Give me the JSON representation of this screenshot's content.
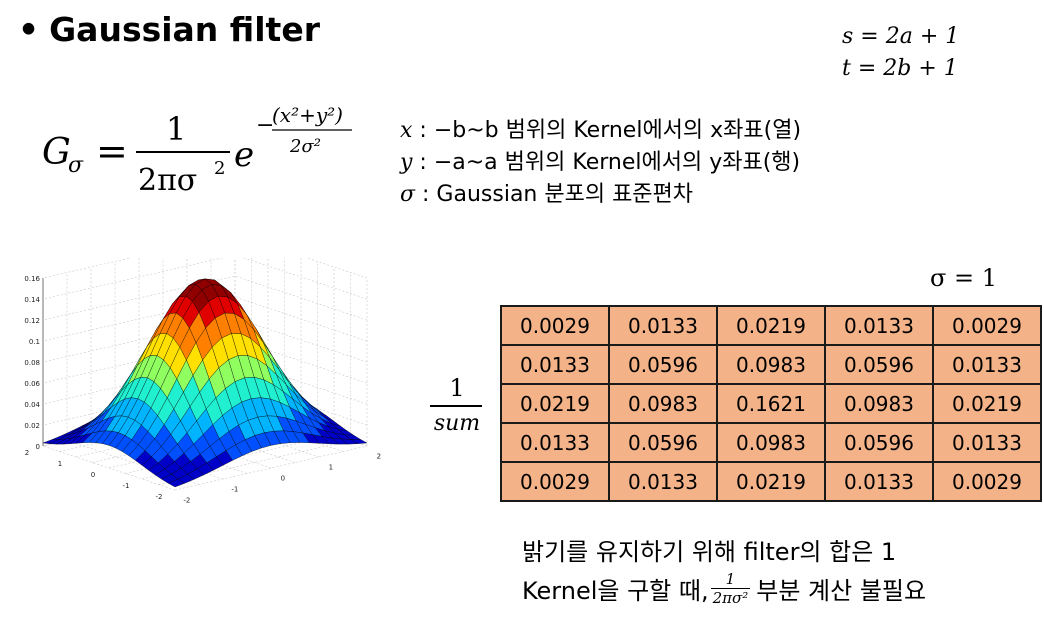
{
  "title": {
    "bullet": "•",
    "text": "Gaussian filter"
  },
  "size_equations": [
    "s = 2a + 1",
    "t = 2b + 1"
  ],
  "formula": {
    "lhs": "G",
    "lhs_sub": "σ",
    "equals": "=",
    "numerator": "1",
    "denominator": "2πσ",
    "denominator_exp": "2",
    "base": "e",
    "exp_minus": "−",
    "exp_numerator": "(x²+y²)",
    "exp_denominator": "2σ²"
  },
  "variables": [
    {
      "symbol": "x",
      "text": " : −b~b 범위의 Kernel에서의 x좌표(열)"
    },
    {
      "symbol": "y",
      "text": " : −a~a 범위의 Kernel에서의 y좌표(행)"
    },
    {
      "symbol": "σ",
      "text": " :  Gaussian 분포의 표준편차"
    }
  ],
  "sigma_label": "σ = 1",
  "normalizer": {
    "numerator": "1",
    "denominator": "sum"
  },
  "kernel": [
    [
      "0.0029",
      "0.0133",
      "0.0219",
      "0.0133",
      "0.0029"
    ],
    [
      "0.0133",
      "0.0596",
      "0.0983",
      "0.0596",
      "0.0133"
    ],
    [
      "0.0219",
      "0.0983",
      "0.1621",
      "0.0983",
      "0.0219"
    ],
    [
      "0.0133",
      "0.0596",
      "0.0983",
      "0.0596",
      "0.0133"
    ],
    [
      "0.0029",
      "0.0133",
      "0.0219",
      "0.0133",
      "0.0029"
    ]
  ],
  "notes": {
    "line1": "밝기를 유지하기 위해 filter의 합은 1",
    "line2_prefix": "Kernel을 구할 때,",
    "line2_frac_num": "1",
    "line2_frac_den": "2πσ²",
    "line2_suffix": "부분 계산 불필요"
  },
  "plot": {
    "z_ticks": [
      "0.16",
      "0.14",
      "0.12",
      "0.1",
      "0.08",
      "0.06",
      "0.04",
      "0.02",
      "0"
    ],
    "x_ticks": [
      "2",
      "1",
      "0",
      "-1",
      "-2"
    ],
    "y_ticks": [
      "-2",
      "-1",
      "0",
      "1",
      "2"
    ],
    "colors": [
      "#0000c8",
      "#0050ff",
      "#00b4ff",
      "#20f0d0",
      "#90ff60",
      "#ffe000",
      "#ff8000",
      "#e00000",
      "#900000"
    ]
  }
}
